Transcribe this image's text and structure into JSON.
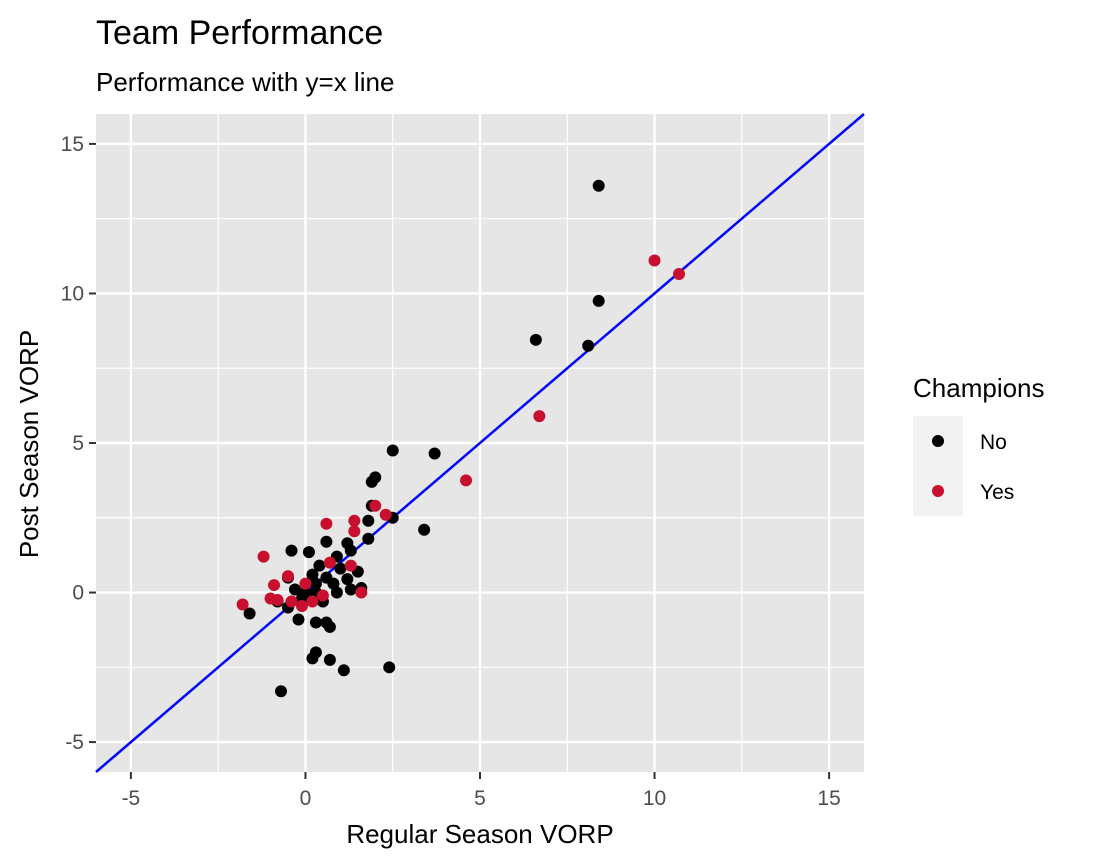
{
  "chart_data": {
    "type": "scatter",
    "title": "Team Performance",
    "subtitle": "Performance with y=x line",
    "xlabel": "Regular Season VORP",
    "ylabel": "Post Season VORP",
    "xlim": [
      -6,
      16
    ],
    "ylim": [
      -6,
      16
    ],
    "x_ticks": [
      -5,
      0,
      5,
      10,
      15
    ],
    "y_ticks": [
      -5,
      0,
      5,
      10,
      15
    ],
    "x_tick_labels": [
      "-5",
      "0",
      "5",
      "10",
      "15"
    ],
    "y_tick_labels": [
      "-5",
      "0",
      "5",
      "10",
      "15"
    ],
    "grid": true,
    "background": "#e6e6e6",
    "reference_line": {
      "slope": 1,
      "intercept": 0,
      "color": "#0000ff"
    },
    "legend": {
      "title": "Champions",
      "position": "right",
      "entries": [
        {
          "label": "No",
          "color": "#000000"
        },
        {
          "label": "Yes",
          "color": "#c8102e"
        }
      ]
    },
    "series": [
      {
        "name": "No",
        "color": "#000000",
        "points": [
          [
            8.4,
            13.6
          ],
          [
            8.4,
            9.75
          ],
          [
            6.6,
            8.45
          ],
          [
            8.1,
            8.25
          ],
          [
            2.5,
            4.75
          ],
          [
            3.7,
            4.65
          ],
          [
            2.0,
            3.85
          ],
          [
            1.9,
            3.7
          ],
          [
            1.9,
            2.9
          ],
          [
            2.5,
            2.5
          ],
          [
            1.8,
            2.4
          ],
          [
            3.4,
            2.1
          ],
          [
            1.8,
            1.8
          ],
          [
            1.2,
            1.65
          ],
          [
            0.6,
            1.7
          ],
          [
            -0.4,
            1.4
          ],
          [
            0.1,
            1.35
          ],
          [
            1.3,
            1.4
          ],
          [
            0.9,
            1.2
          ],
          [
            0.4,
            0.9
          ],
          [
            1.0,
            0.8
          ],
          [
            1.5,
            0.7
          ],
          [
            0.2,
            0.6
          ],
          [
            0.6,
            0.5
          ],
          [
            1.2,
            0.45
          ],
          [
            -0.5,
            0.5
          ],
          [
            0.3,
            0.3
          ],
          [
            0.8,
            0.3
          ],
          [
            1.6,
            0.15
          ],
          [
            -0.3,
            0.1
          ],
          [
            0.0,
            0.0
          ],
          [
            0.3,
            0.0
          ],
          [
            0.9,
            0.0
          ],
          [
            1.3,
            0.1
          ],
          [
            -0.1,
            -0.2
          ],
          [
            0.4,
            -0.2
          ],
          [
            -0.5,
            -0.5
          ],
          [
            0.5,
            -0.3
          ],
          [
            -0.2,
            -0.9
          ],
          [
            0.3,
            -1.0
          ],
          [
            0.6,
            -1.0
          ],
          [
            0.7,
            -1.15
          ],
          [
            -1.6,
            -0.7
          ],
          [
            -0.8,
            -0.3
          ],
          [
            0.3,
            -2.0
          ],
          [
            0.2,
            -2.2
          ],
          [
            0.7,
            -2.25
          ],
          [
            1.1,
            -2.6
          ],
          [
            2.4,
            -2.5
          ],
          [
            -0.7,
            -3.3
          ]
        ]
      },
      {
        "name": "Yes",
        "color": "#c8102e",
        "points": [
          [
            10.0,
            11.1
          ],
          [
            10.7,
            10.65
          ],
          [
            6.7,
            5.9
          ],
          [
            4.6,
            3.75
          ],
          [
            2.0,
            2.9
          ],
          [
            2.3,
            2.6
          ],
          [
            1.4,
            2.4
          ],
          [
            0.6,
            2.3
          ],
          [
            1.4,
            2.05
          ],
          [
            -1.2,
            1.2
          ],
          [
            0.7,
            1.0
          ],
          [
            1.3,
            0.9
          ],
          [
            -0.5,
            0.55
          ],
          [
            -0.9,
            0.25
          ],
          [
            0.0,
            0.3
          ],
          [
            1.6,
            0.0
          ],
          [
            -1.0,
            -0.2
          ],
          [
            -0.8,
            -0.25
          ],
          [
            -0.4,
            -0.3
          ],
          [
            0.2,
            -0.3
          ],
          [
            -1.8,
            -0.4
          ],
          [
            -0.1,
            -0.45
          ],
          [
            0.5,
            -0.1
          ]
        ]
      }
    ]
  }
}
